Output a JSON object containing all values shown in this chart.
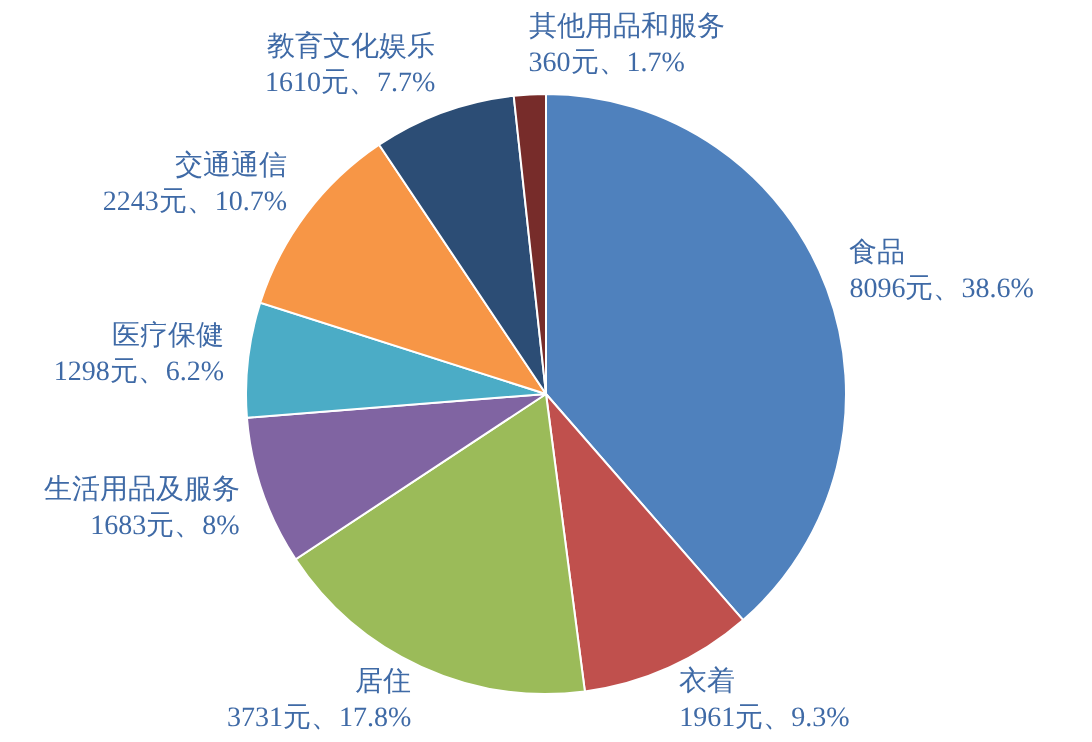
{
  "chart_data": {
    "type": "pie",
    "categories": [
      "食品",
      "衣着",
      "居住",
      "生活用品及服务",
      "医疗保健",
      "交通通信",
      "教育文化娱乐",
      "其他用品和服务"
    ],
    "values": [
      8096,
      1961,
      3731,
      1683,
      1298,
      2243,
      1610,
      360
    ],
    "value_labels": [
      "8096元、38.6%",
      "1961元、9.3%",
      "3731元、17.8%",
      "1683元、8%",
      "1298元、6.2%",
      "2243元、10.7%",
      "1610元、7.7%",
      "360元、1.7%"
    ],
    "colors": [
      "#4f81bd",
      "#c0504d",
      "#9bbb59",
      "#8064a2",
      "#4bacc6",
      "#f79646",
      "#2c4d75",
      "#772c2a"
    ]
  }
}
